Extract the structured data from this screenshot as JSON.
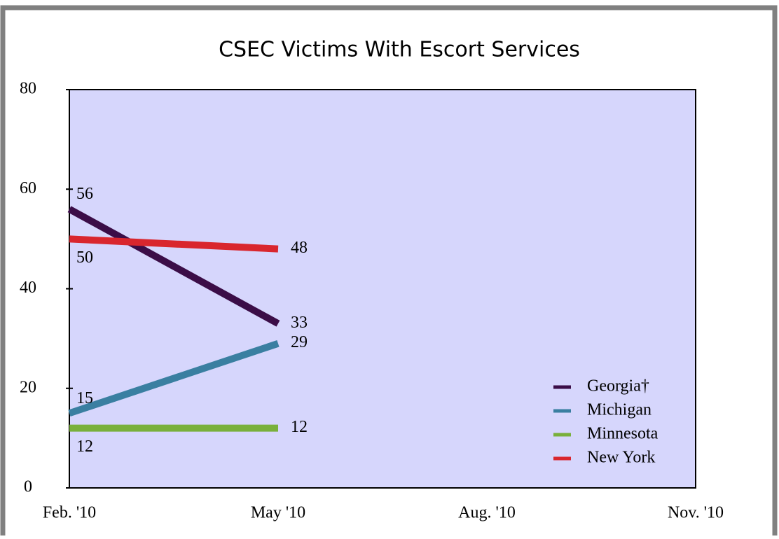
{
  "chart_data": {
    "type": "line",
    "title": "CSEC Victims With Escort Services",
    "categories": [
      "Feb. '10",
      "May '10",
      "Aug. '10",
      "Nov. '10"
    ],
    "series": [
      {
        "name": "Georgia†",
        "color": "#3b0d47",
        "values": [
          56,
          33,
          null,
          null
        ]
      },
      {
        "name": "Michigan",
        "color": "#3a7fa1",
        "values": [
          15,
          29,
          null,
          null
        ]
      },
      {
        "name": "Minnesota",
        "color": "#79b03b",
        "values": [
          12,
          12,
          null,
          null
        ]
      },
      {
        "name": "New York",
        "color": "#d9262e",
        "values": [
          50,
          48,
          null,
          null
        ]
      }
    ],
    "ylim": [
      0,
      80
    ],
    "yticks": [
      0,
      20,
      40,
      60,
      80
    ],
    "plot_background": "#d6d6fc",
    "legend": "lower right",
    "data_labels": true
  }
}
